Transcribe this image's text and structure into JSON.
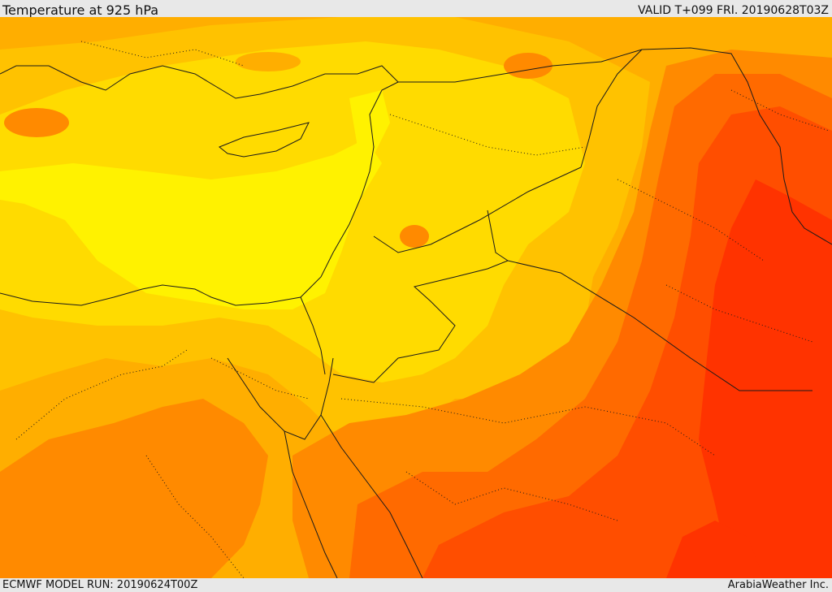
{
  "header": {
    "title": "Temperature at 925 hPa",
    "valid": "VALID T+099 FRI. 20190628T03Z"
  },
  "footer": {
    "model_run": "ECMWF MODEL RUN: 20190624T00Z",
    "credit": "ArabiaWeather Inc."
  },
  "palette": {
    "band_yellow_bright": "#fff200",
    "band_yellow": "#ffdb00",
    "band_amber": "#ffc200",
    "band_orange_light": "#ffae00",
    "band_orange": "#ff8a00",
    "band_orange_dark": "#ff6a00",
    "band_red": "#ff4e00",
    "band_red_deep": "#ff3300",
    "border_color": "#1a1a1a"
  }
}
